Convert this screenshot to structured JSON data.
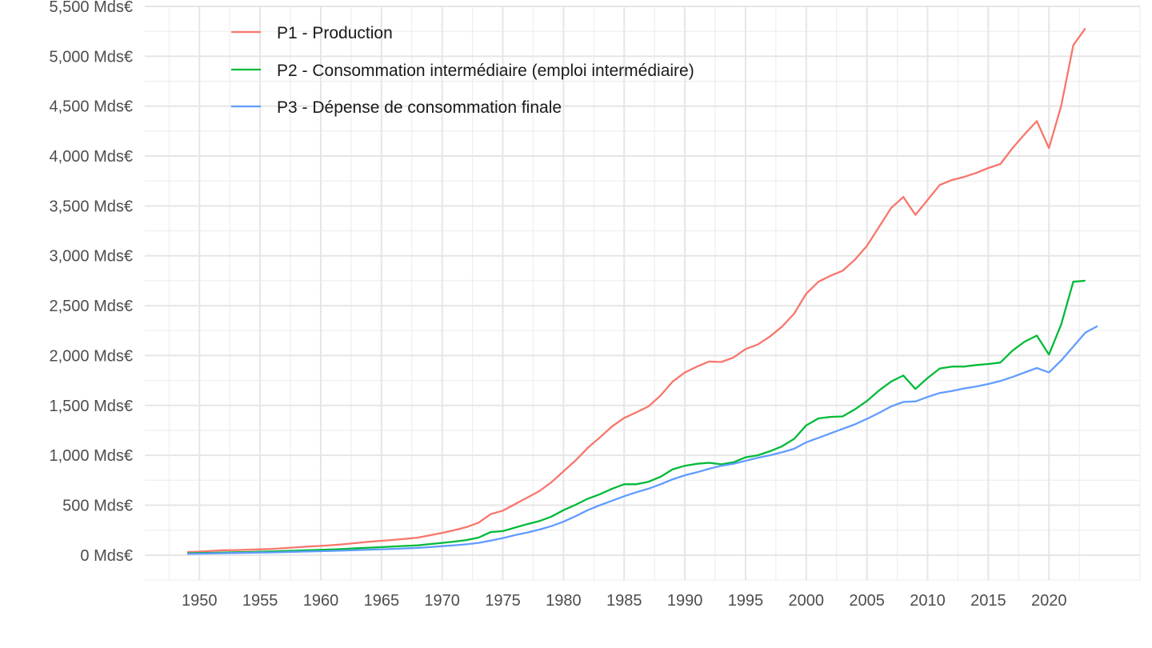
{
  "chart_data": {
    "type": "line",
    "title": "",
    "xlabel": "",
    "ylabel": "",
    "xlim": [
      1945.5,
      2027.5
    ],
    "ylim": [
      -250,
      5500
    ],
    "grid": true,
    "legend_position": "top-left",
    "y_ticks": [
      0,
      500,
      1000,
      1500,
      2000,
      2500,
      3000,
      3500,
      4000,
      4500,
      5000,
      5500
    ],
    "y_tick_labels": [
      "0 Mds€",
      "500 Mds€",
      "1,000 Mds€",
      "1,500 Mds€",
      "2,000 Mds€",
      "2,500 Mds€",
      "3,000 Mds€",
      "3,500 Mds€",
      "4,000 Mds€",
      "4,500 Mds€",
      "5,000 Mds€",
      "5,500 Mds€"
    ],
    "x_ticks": [
      1950,
      1955,
      1960,
      1965,
      1970,
      1975,
      1980,
      1985,
      1990,
      1995,
      2000,
      2005,
      2010,
      2015,
      2020
    ],
    "x_tick_labels": [
      "1950",
      "1955",
      "1960",
      "1965",
      "1970",
      "1975",
      "1980",
      "1985",
      "1990",
      "1995",
      "2000",
      "2005",
      "2010",
      "2015",
      "2020"
    ],
    "series": [
      {
        "name": "P1 - Production",
        "color": "#F8766D",
        "x": [
          1949,
          1950,
          1951,
          1952,
          1953,
          1954,
          1955,
          1956,
          1957,
          1958,
          1959,
          1960,
          1961,
          1962,
          1963,
          1964,
          1965,
          1966,
          1967,
          1968,
          1969,
          1970,
          1971,
          1972,
          1973,
          1974,
          1975,
          1976,
          1977,
          1978,
          1979,
          1980,
          1981,
          1982,
          1983,
          1984,
          1985,
          1986,
          1987,
          1988,
          1989,
          1990,
          1991,
          1992,
          1993,
          1994,
          1995,
          1996,
          1997,
          1998,
          1999,
          2000,
          2001,
          2002,
          2003,
          2004,
          2005,
          2006,
          2007,
          2008,
          2009,
          2010,
          2011,
          2012,
          2013,
          2014,
          2015,
          2016,
          2017,
          2018,
          2019,
          2020,
          2021,
          2022,
          2023
        ],
        "y": [
          30,
          35,
          42,
          48,
          50,
          53,
          57,
          62,
          70,
          78,
          85,
          92,
          100,
          110,
          122,
          133,
          143,
          152,
          163,
          175,
          198,
          222,
          250,
          280,
          325,
          410,
          445,
          510,
          575,
          640,
          730,
          840,
          950,
          1075,
          1180,
          1290,
          1375,
          1430,
          1490,
          1600,
          1740,
          1830,
          1890,
          1940,
          1935,
          1980,
          2065,
          2110,
          2190,
          2290,
          2420,
          2620,
          2740,
          2800,
          2850,
          2960,
          3100,
          3290,
          3480,
          3590,
          3410,
          3560,
          3710,
          3760,
          3790,
          3830,
          3880,
          3920,
          4080,
          4220,
          4350,
          4080,
          4500,
          5110,
          5280
        ]
      },
      {
        "name": "P2 - Consommation intermédiaire (emploi intermédiaire)",
        "color": "#00BA38",
        "x": [
          1949,
          1950,
          1951,
          1952,
          1953,
          1954,
          1955,
          1956,
          1957,
          1958,
          1959,
          1960,
          1961,
          1962,
          1963,
          1964,
          1965,
          1966,
          1967,
          1968,
          1969,
          1970,
          1971,
          1972,
          1973,
          1974,
          1975,
          1976,
          1977,
          1978,
          1979,
          1980,
          1981,
          1982,
          1983,
          1984,
          1985,
          1986,
          1987,
          1988,
          1989,
          1990,
          1991,
          1992,
          1993,
          1994,
          1995,
          1996,
          1997,
          1998,
          1999,
          2000,
          2001,
          2002,
          2003,
          2004,
          2005,
          2006,
          2007,
          2008,
          2009,
          2010,
          2011,
          2012,
          2013,
          2014,
          2015,
          2016,
          2017,
          2018,
          2019,
          2020,
          2021,
          2022,
          2023
        ],
        "y": [
          18,
          20,
          23,
          26,
          28,
          30,
          33,
          36,
          40,
          44,
          48,
          52,
          56,
          62,
          68,
          74,
          80,
          86,
          92,
          98,
          110,
          122,
          135,
          150,
          175,
          230,
          240,
          275,
          310,
          340,
          385,
          450,
          505,
          565,
          610,
          665,
          710,
          710,
          735,
          785,
          860,
          895,
          915,
          925,
          910,
          930,
          980,
          1000,
          1040,
          1090,
          1165,
          1300,
          1370,
          1385,
          1390,
          1460,
          1545,
          1650,
          1740,
          1800,
          1665,
          1775,
          1870,
          1890,
          1890,
          1905,
          1915,
          1930,
          2050,
          2140,
          2200,
          2010,
          2310,
          2740,
          2750
        ]
      },
      {
        "name": "P3 - Dépense de consommation finale",
        "color": "#619CFF",
        "x": [
          1949,
          1950,
          1951,
          1952,
          1953,
          1954,
          1955,
          1956,
          1957,
          1958,
          1959,
          1960,
          1961,
          1962,
          1963,
          1964,
          1965,
          1966,
          1967,
          1968,
          1969,
          1970,
          1971,
          1972,
          1973,
          1974,
          1975,
          1976,
          1977,
          1978,
          1979,
          1980,
          1981,
          1982,
          1983,
          1984,
          1985,
          1986,
          1987,
          1988,
          1989,
          1990,
          1991,
          1992,
          1993,
          1994,
          1995,
          1996,
          1997,
          1998,
          1999,
          2000,
          2001,
          2002,
          2003,
          2004,
          2005,
          2006,
          2007,
          2008,
          2009,
          2010,
          2011,
          2012,
          2013,
          2014,
          2015,
          2016,
          2017,
          2018,
          2019,
          2020,
          2021,
          2022,
          2023,
          2024
        ],
        "y": [
          12,
          14,
          17,
          19,
          21,
          23,
          25,
          27,
          30,
          33,
          36,
          39,
          42,
          46,
          50,
          54,
          58,
          62,
          67,
          72,
          80,
          89,
          98,
          108,
          122,
          145,
          170,
          200,
          225,
          255,
          290,
          335,
          390,
          450,
          500,
          545,
          590,
          630,
          665,
          710,
          760,
          800,
          830,
          865,
          895,
          915,
          945,
          975,
          1000,
          1030,
          1065,
          1130,
          1175,
          1220,
          1265,
          1310,
          1365,
          1425,
          1490,
          1535,
          1540,
          1585,
          1625,
          1645,
          1670,
          1690,
          1715,
          1745,
          1785,
          1830,
          1875,
          1830,
          1950,
          2090,
          2230,
          2295
        ]
      }
    ]
  }
}
